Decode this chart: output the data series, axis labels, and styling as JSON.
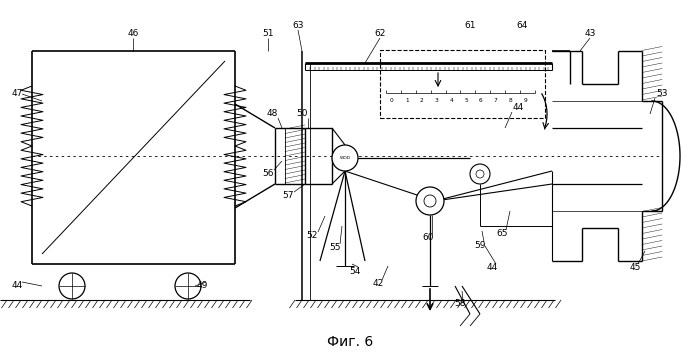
{
  "title": "Фиг. 6",
  "background_color": "#ffffff",
  "line_color": "#000000",
  "figsize": [
    7.0,
    3.56
  ],
  "dpi": 100
}
